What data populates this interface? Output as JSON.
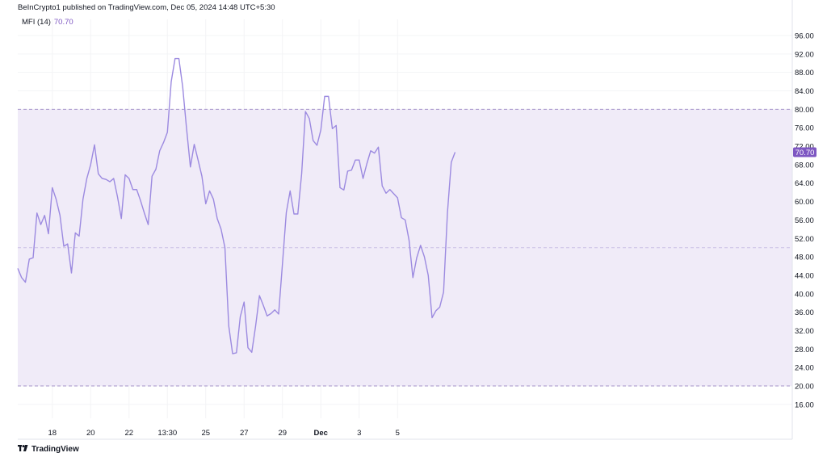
{
  "header": {
    "published": "BeInCrypto1 published on TradingView.com, Dec 05, 2024 14:48 UTC+5:30"
  },
  "indicator": {
    "name": "MFI (14)",
    "value": "70.70"
  },
  "footer": {
    "brand": "TradingView"
  },
  "colors": {
    "line": "#9c8ae0",
    "band": "#f0ebf8",
    "bandLine": "#a593c9",
    "midLine": "#c9bfe5",
    "badge": "#7e57c2"
  },
  "chart_data": {
    "type": "line",
    "title": "",
    "xlabel": "",
    "ylabel": "",
    "ylim": [
      13,
      99.5
    ],
    "y_ticks": [
      "96.00",
      "92.00",
      "88.00",
      "84.00",
      "80.00",
      "76.00",
      "72.00",
      "68.00",
      "64.00",
      "60.00",
      "56.00",
      "52.00",
      "48.00",
      "44.00",
      "40.00",
      "36.00",
      "32.00",
      "28.00",
      "24.00",
      "20.00",
      "16.00"
    ],
    "x_tick_labels": [
      "18",
      "20",
      "22",
      "13:30",
      "25",
      "27",
      "29",
      "Dec",
      "3",
      "5"
    ],
    "x_tick_index": [
      9,
      19,
      29,
      39,
      49,
      59,
      69,
      79,
      89,
      99
    ],
    "bands": {
      "upper": 80,
      "middle": 50,
      "lower": 20
    },
    "last_value_label": "70.70",
    "series": [
      {
        "values": [
          45.5,
          43.5,
          42.5,
          47.5,
          47.8,
          57.5,
          55,
          57,
          53,
          63,
          60.5,
          57,
          50.3,
          50.8,
          44.5,
          53.2,
          52.5,
          60.5,
          65,
          68,
          72.3,
          66,
          65,
          64.8,
          64.3,
          65,
          61,
          56.3,
          65.8,
          65,
          62.6,
          62.6,
          60.2,
          57.5,
          55,
          65.5,
          67,
          71,
          72.8,
          75,
          86,
          91,
          91,
          84.8,
          75.8,
          67.5,
          72.4,
          69,
          65.5,
          59.5,
          62.3,
          60.5,
          56.3,
          54,
          50,
          33,
          27,
          27.2,
          35,
          38.2,
          28.3,
          27.3,
          33,
          39.6,
          37.5,
          35.2,
          35.7,
          36.5,
          35.6,
          46.5,
          57.6,
          62.3,
          57.3,
          57.3,
          66,
          79.5,
          78,
          73.2,
          72.2,
          75.5,
          82.8,
          82.8,
          75.8,
          76.5,
          63,
          62.5,
          66.6,
          66.8,
          69,
          69,
          65,
          68.2,
          71,
          70.5,
          71.8,
          63.4,
          61.8,
          62.6,
          61.7,
          60.8,
          56.5,
          56,
          51.6,
          43.5,
          47.8,
          50.5,
          48,
          44,
          34.8,
          36.3,
          37.1,
          40.4,
          57.5,
          68.5,
          70.7
        ]
      }
    ]
  }
}
